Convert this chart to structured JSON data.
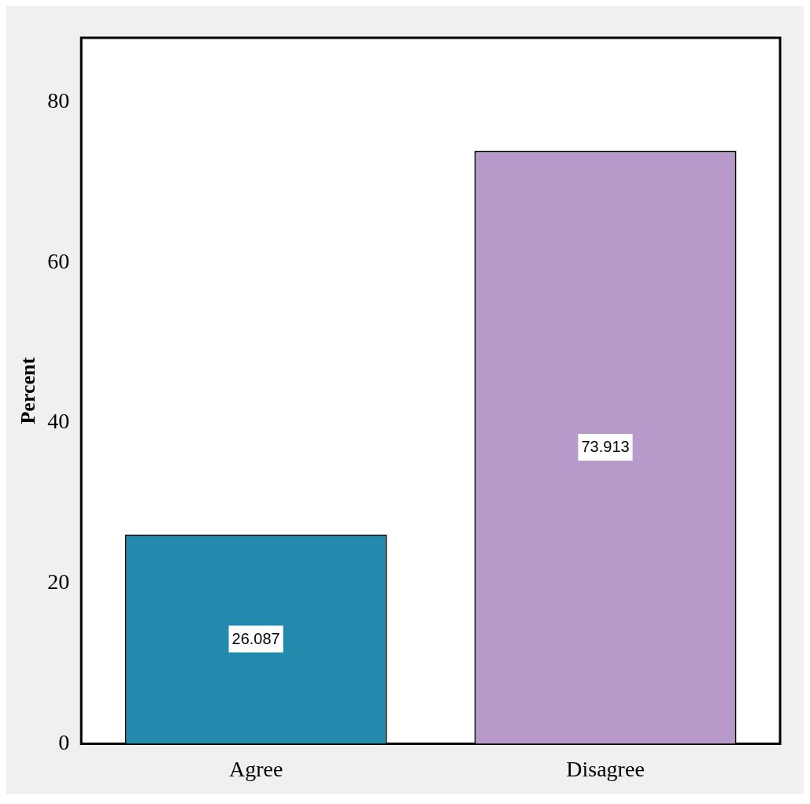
{
  "chart_data": {
    "type": "bar",
    "ylabel": "Percent",
    "categories": [
      "Agree",
      "Disagree"
    ],
    "values": [
      26.087,
      73.913
    ],
    "colors": [
      "#248aad",
      "#b89aca"
    ],
    "ylim": [
      0,
      88
    ],
    "yticks": [
      0,
      20,
      40,
      60,
      80
    ],
    "grid": false,
    "legend": false,
    "data_labels": true
  }
}
